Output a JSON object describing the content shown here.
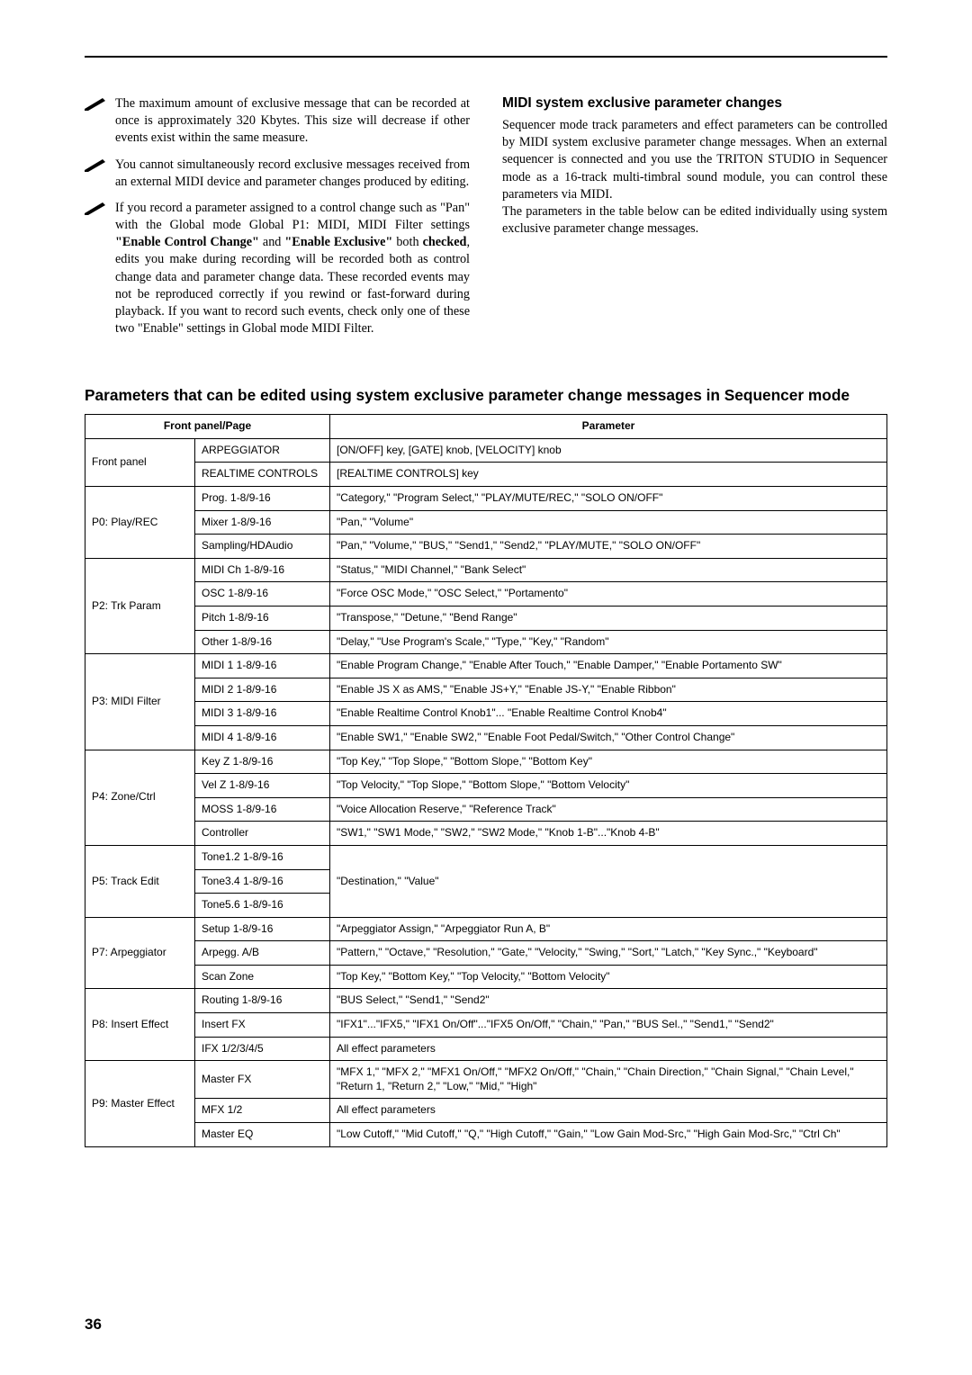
{
  "notes": [
    "The maximum amount of exclusive message that can be recorded at once is approximately 320 Kbytes. This size will decrease if other events exist within the same measure.",
    "You cannot simultaneously record exclusive messages received from an external MIDI device and parameter changes produced by editing.",
    "If you record a parameter assigned to a control change such as \"Pan\" with the Global mode Global P1: MIDI, MIDI Filter settings <b>\"Enable Control Change\"</b> and <b>\"Enable Exclusive\"</b> both <b>checked</b>, edits you make during recording will be recorded both as control change data and parameter change data. These recorded events may not be reproduced correctly if you rewind or fast-forward during playback. If you want to record such events, check only one of these two \"Enable\" settings in Global mode MIDI Filter."
  ],
  "right": {
    "heading": "MIDI system exclusive parameter changes",
    "body": "Sequencer mode track parameters and effect parameters can be controlled by MIDI system exclusive parameter change messages. When an external sequencer is connected and you use the TRITON STUDIO in Sequencer mode as a 16-track multi-timbral sound module, you can control these parameters via MIDI.",
    "body2": "The parameters in the table below can be edited individually using system exclusive parameter change messages."
  },
  "table_heading": "Parameters that can be edited using system exclusive parameter change messages in Sequencer mode",
  "table": {
    "header": [
      "Front panel/Page",
      "Parameter"
    ],
    "groups": [
      {
        "label": "Front panel",
        "rows": [
          [
            "ARPEGGIATOR",
            "[ON/OFF] key, [GATE] knob, [VELOCITY] knob"
          ],
          [
            "REALTIME CONTROLS",
            "[REALTIME CONTROLS] key"
          ]
        ]
      },
      {
        "label": "P0: Play/REC",
        "rows": [
          [
            "Prog. 1-8/9-16",
            "\"Category,\" \"Program Select,\" \"PLAY/MUTE/REC,\" \"SOLO ON/OFF\""
          ],
          [
            "Mixer 1-8/9-16",
            "\"Pan,\" \"Volume\""
          ],
          [
            "Sampling/HDAudio",
            "\"Pan,\" \"Volume,\" \"BUS,\" \"Send1,\" \"Send2,\" \"PLAY/MUTE,\" \"SOLO ON/OFF\""
          ]
        ]
      },
      {
        "label": "P2: Trk Param",
        "rows": [
          [
            "MIDI Ch 1-8/9-16",
            "\"Status,\" \"MIDI Channel,\" \"Bank Select\""
          ],
          [
            "OSC 1-8/9-16",
            "\"Force OSC Mode,\" \"OSC Select,\" \"Portamento\""
          ],
          [
            "Pitch 1-8/9-16",
            "\"Transpose,\" \"Detune,\" \"Bend Range\""
          ],
          [
            "Other 1-8/9-16",
            "\"Delay,\" \"Use Program's Scale,\" \"Type,\" \"Key,\" \"Random\""
          ]
        ]
      },
      {
        "label": "P3: MIDI Filter",
        "rows": [
          [
            "MIDI 1 1-8/9-16",
            "\"Enable Program Change,\" \"Enable After Touch,\" \"Enable Damper,\" \"Enable Portamento SW\""
          ],
          [
            "MIDI 2 1-8/9-16",
            "\"Enable JS X as AMS,\" \"Enable JS+Y,\" \"Enable JS-Y,\" \"Enable Ribbon\""
          ],
          [
            "MIDI 3 1-8/9-16",
            "\"Enable Realtime Control Knob1\"... \"Enable Realtime Control Knob4\""
          ],
          [
            "MIDI 4 1-8/9-16",
            "\"Enable SW1,\" \"Enable SW2,\" \"Enable Foot Pedal/Switch,\" \"Other Control Change\""
          ]
        ]
      },
      {
        "label": "P4: Zone/Ctrl",
        "rows": [
          [
            "Key Z 1-8/9-16",
            "\"Top Key,\" \"Top Slope,\" \"Bottom Slope,\" \"Bottom Key\""
          ],
          [
            "Vel Z 1-8/9-16",
            "\"Top Velocity,\" \"Top Slope,\" \"Bottom Slope,\" \"Bottom Velocity\""
          ],
          [
            "MOSS 1-8/9-16",
            "\"Voice Allocation Reserve,\" \"Reference Track\""
          ],
          [
            "Controller",
            "\"SW1,\" \"SW1 Mode,\" \"SW2,\" \"SW2 Mode,\" \"Knob 1-B\"...\"Knob 4-B\""
          ]
        ]
      },
      {
        "label": "P5: Track Edit",
        "merged_param": "\"Destination,\" \"Value\"",
        "rows": [
          [
            "Tone1.2 1-8/9-16"
          ],
          [
            "Tone3.4 1-8/9-16"
          ],
          [
            "Tone5.6 1-8/9-16"
          ]
        ]
      },
      {
        "label": "P7: Arpeggiator",
        "rows": [
          [
            "Setup 1-8/9-16",
            "\"Arpeggiator Assign,\" \"Arpeggiator Run A, B\""
          ],
          [
            "Arpegg. A/B",
            "\"Pattern,\" \"Octave,\" \"Resolution,\" \"Gate,\" \"Velocity,\" \"Swing,\" \"Sort,\" \"Latch,\" \"Key Sync.,\" \"Keyboard\""
          ],
          [
            "Scan Zone",
            "\"Top Key,\" \"Bottom Key,\" \"Top Velocity,\" \"Bottom Velocity\""
          ]
        ]
      },
      {
        "label": "P8: Insert Effect",
        "rows": [
          [
            "Routing 1-8/9-16",
            "\"BUS Select,\" \"Send1,\" \"Send2\""
          ],
          [
            "Insert FX",
            "\"IFX1\"...\"IFX5,\" \"IFX1 On/Off\"...\"IFX5 On/Off,\" \"Chain,\" \"Pan,\" \"BUS Sel.,\" \"Send1,\" \"Send2\""
          ],
          [
            "IFX 1/2/3/4/5",
            "All effect parameters"
          ]
        ]
      },
      {
        "label": "P9: Master Effect",
        "rows": [
          [
            "Master FX",
            "\"MFX 1,\" \"MFX 2,\" \"MFX1 On/Off,\" \"MFX2 On/Off,\" \"Chain,\" \"Chain Direction,\" \"Chain Signal,\" \"Chain Level,\" \"Return 1, \"Return 2,\" \"Low,\" \"Mid,\" \"High\""
          ],
          [
            "MFX 1/2",
            "All effect parameters"
          ],
          [
            "Master EQ",
            "\"Low Cutoff,\" \"Mid Cutoff,\" \"Q,\" \"High Cutoff,\" \"Gain,\" \"Low Gain Mod-Src,\" \"High Gain Mod-Src,\" \"Ctrl Ch\""
          ]
        ]
      }
    ]
  },
  "page_number": "36"
}
